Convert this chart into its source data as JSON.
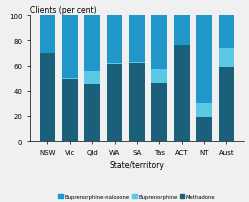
{
  "categories": [
    "NSW",
    "Vic",
    "Qld",
    "WA",
    "SA",
    "Tas",
    "ACT",
    "NT",
    "Aust"
  ],
  "methadone": [
    70,
    49,
    45,
    61,
    62,
    46,
    76,
    19,
    59
  ],
  "buprenorphine": [
    0,
    1,
    11,
    1,
    1,
    11,
    0,
    11,
    15
  ],
  "buprenorphine_naloxone": [
    30,
    50,
    44,
    38,
    37,
    43,
    24,
    70,
    26
  ],
  "color_methadone": "#1a607a",
  "color_buprenorphine": "#5bc8e8",
  "color_buprenorphine_naloxone": "#2196c8",
  "title": "Clients (per cent)",
  "xlabel": "State/territory",
  "ylim": [
    0,
    100
  ],
  "yticks": [
    0,
    20,
    40,
    60,
    80,
    100
  ],
  "background": "#f0f0f0",
  "legend_labels": [
    "Buprenorphine-naloxone",
    "Buprenorphine",
    "Methadone"
  ]
}
